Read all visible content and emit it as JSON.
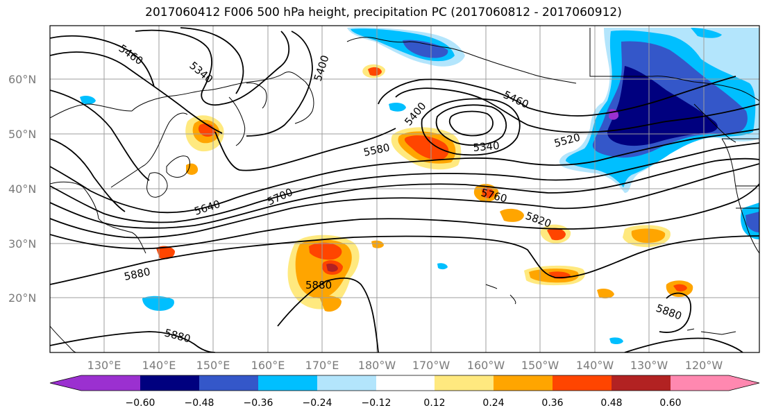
{
  "title": "2017060412 F006 500 hPa height, precipitation PC (2017060812 - 2017060912)",
  "lat_labels": [
    "60°N",
    "50°N",
    "40°N",
    "30°N",
    "20°N"
  ],
  "lon_labels": [
    "130°E",
    "140°E",
    "150°E",
    "160°E",
    "170°E",
    "180°W",
    "170°W",
    "160°W",
    "150°W",
    "140°W",
    "130°W",
    "120°W"
  ],
  "colorbar": {
    "tick_labels": [
      "−0.60",
      "−0.48",
      "−0.36",
      "−0.24",
      "−0.12",
      "0.12",
      "0.24",
      "0.36",
      "0.48",
      "0.60"
    ],
    "colors": [
      "#9b30d0",
      "#00007f",
      "#3457c9",
      "#00bfff",
      "#b3e5fc",
      "#ffffff",
      "#ffe97f",
      "#ffa500",
      "#ff4500",
      "#b22222",
      "#ff88b0"
    ]
  },
  "contour_labels": [
    "5460",
    "5340",
    "5400",
    "5400",
    "5460",
    "5340",
    "5520",
    "5580",
    "5640",
    "5700",
    "5760",
    "5820",
    "5880",
    "5880",
    "5880",
    "5880"
  ],
  "precip_colors": {
    "pos_light": "#ffe97f",
    "pos_mid": "#ffa500",
    "pos_strong": "#ff4500",
    "pos_max": "#b22222",
    "neg_light": "#b3e5fc",
    "neg_mid": "#00bfff",
    "neg_strong": "#3457c9",
    "neg_max": "#00007f",
    "neg_peak": "#9b30d0"
  }
}
